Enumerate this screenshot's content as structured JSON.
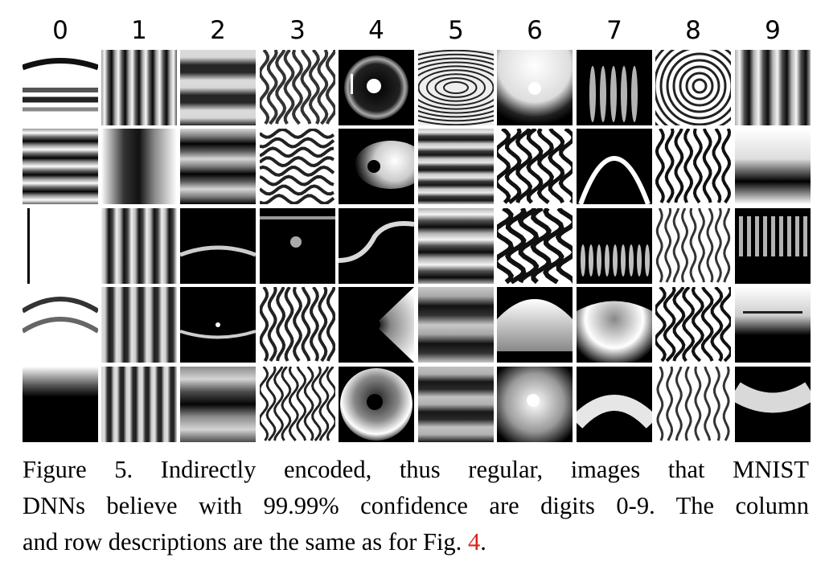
{
  "figure": {
    "column_labels": [
      "0",
      "1",
      "2",
      "3",
      "4",
      "5",
      "6",
      "7",
      "8",
      "9"
    ],
    "caption": {
      "line1": "Figure 5. Indirectly encoded, thus regular, images that MNIST",
      "line2": "DNNs believe with 99.99% confidence are digits 0-9. The column",
      "line3_prefix": "and row descriptions are the same as for Fig. ",
      "line3_ref": "4",
      "line3_suffix": "."
    }
  }
}
